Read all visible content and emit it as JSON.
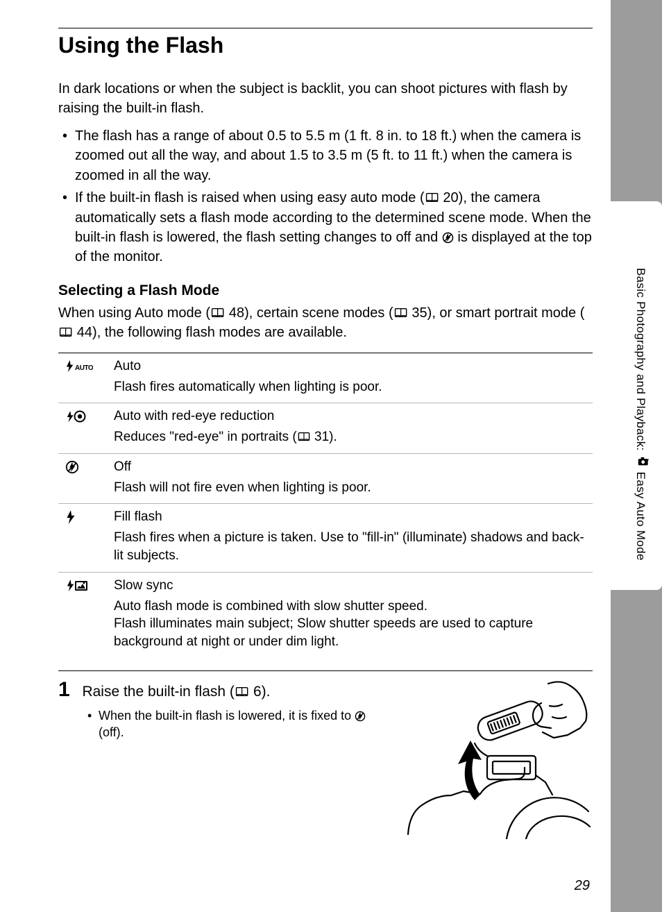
{
  "page_title": "Using the Flash",
  "intro": "In dark locations or when the subject is backlit, you can shoot pictures with flash by raising the built-in flash.",
  "bullets": [
    "The flash has a range of about 0.5 to 5.5 m (1 ft. 8 in. to 18 ft.) when the camera is zoomed out all the way, and about 1.5 to 3.5 m (5 ft. to 11 ft.) when the camera is zoomed in all the way.",
    "If the built-in flash is raised when using easy auto mode ({book} 20), the camera automatically sets a flash mode according to the determined scene mode. When the built-in flash is lowered, the flash setting changes to off and {flashoff} is displayed at the top of the monitor."
  ],
  "section_title": "Selecting a Flash Mode",
  "section_intro": "When using Auto mode ({book} 48), certain scene modes ({book} 35), or smart portrait mode ({book} 44), the following flash modes are available.",
  "modes": [
    {
      "icon": "flash-auto-icon",
      "name": "Auto",
      "desc": "Flash fires automatically when lighting is poor."
    },
    {
      "icon": "flash-redeye-icon",
      "name": "Auto with red-eye reduction",
      "desc": "Reduces \"red-eye\" in portraits ({book} 31)."
    },
    {
      "icon": "flash-off-icon",
      "name": "Off",
      "desc": "Flash will not fire even when lighting is poor."
    },
    {
      "icon": "flash-fill-icon",
      "name": "Fill flash",
      "desc": "Flash fires when a picture is taken. Use to \"fill-in\" (illuminate) shadows and back-lit subjects."
    },
    {
      "icon": "flash-slow-icon",
      "name": "Slow sync",
      "desc": "Auto flash mode is combined with slow shutter speed.\nFlash illuminates main subject; Slow shutter speeds are used to capture background at night or under dim light."
    }
  ],
  "step": {
    "num": "1",
    "title": "Raise the built-in flash ({book} 6).",
    "bullet": "When the built-in flash is lowered, it is fixed to {flashoff} (off)."
  },
  "side_label_before": "Basic Photography and Playback: ",
  "side_label_after": " Easy Auto Mode",
  "page_number": "29",
  "colors": {
    "page_bg": "#ffffff",
    "outer_bg": "#9c9c9c",
    "text": "#000000",
    "rule": "#000000",
    "row_rule": "#b5b5b5"
  }
}
